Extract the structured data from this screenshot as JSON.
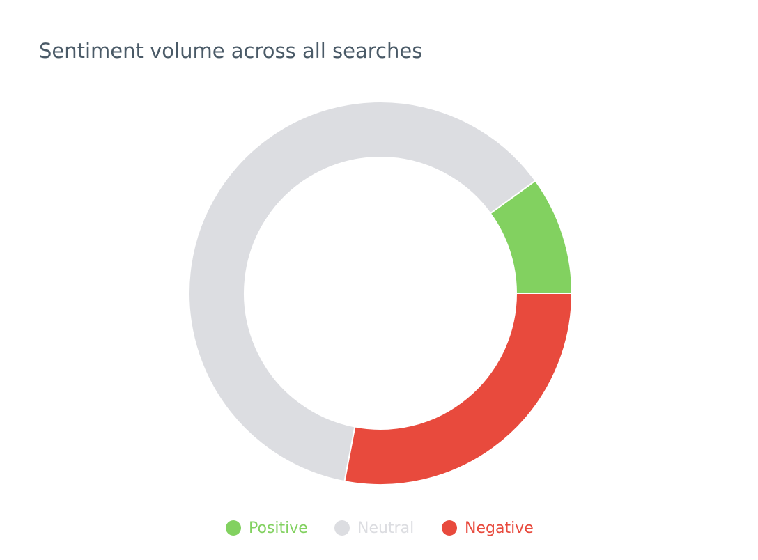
{
  "chart_data": {
    "type": "donut",
    "title": "Sentiment volume across all searches",
    "categories": [
      "Positive",
      "Neutral",
      "Negative"
    ],
    "values": [
      10,
      62,
      28
    ],
    "colors": [
      "#82d160",
      "#dcdde1",
      "#e84a3d"
    ]
  }
}
